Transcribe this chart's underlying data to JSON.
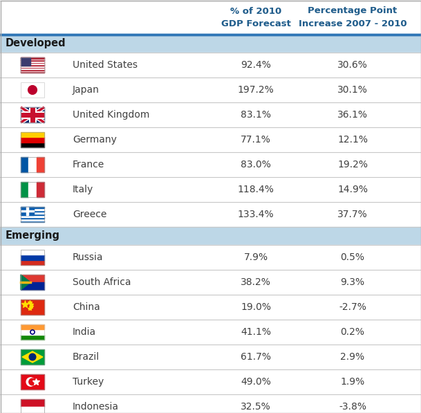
{
  "header_col1": "% of 2010\nGDP Forecast",
  "header_col2": "Percentage Point\nIncrease 2007 - 2010",
  "header_color": "#1F5C8B",
  "section_developed": "Developed",
  "section_emerging": "Emerging",
  "section_bg_color": "#BDD7E7",
  "separator_color": "#C8C8C8",
  "body_text_color": "#404040",
  "data_text_color": "#404040",
  "top_border_color": "#2E75B6",
  "developed": [
    {
      "country": "United States",
      "gdp": "92.4%",
      "pp": "30.6%"
    },
    {
      "country": "Japan",
      "gdp": "197.2%",
      "pp": "30.1%"
    },
    {
      "country": "United Kingdom",
      "gdp": "83.1%",
      "pp": "36.1%"
    },
    {
      "country": "Germany",
      "gdp": "77.1%",
      "pp": "12.1%"
    },
    {
      "country": "France",
      "gdp": "83.0%",
      "pp": "19.2%"
    },
    {
      "country": "Italy",
      "gdp": "118.4%",
      "pp": "14.9%"
    },
    {
      "country": "Greece",
      "gdp": "133.4%",
      "pp": "37.7%"
    }
  ],
  "emerging": [
    {
      "country": "Russia",
      "gdp": "7.9%",
      "pp": "0.5%"
    },
    {
      "country": "South Africa",
      "gdp": "38.2%",
      "pp": "9.3%"
    },
    {
      "country": "China",
      "gdp": "19.0%",
      "pp": "-2.7%"
    },
    {
      "country": "India",
      "gdp": "41.1%",
      "pp": "0.2%"
    },
    {
      "country": "Brazil",
      "gdp": "61.7%",
      "pp": "2.9%"
    },
    {
      "country": "Turkey",
      "gdp": "49.0%",
      "pp": "1.9%"
    },
    {
      "country": "Indonesia",
      "gdp": "32.5%",
      "pp": "-3.8%"
    }
  ],
  "figsize": [
    6.09,
    5.97
  ],
  "dpi": 100
}
